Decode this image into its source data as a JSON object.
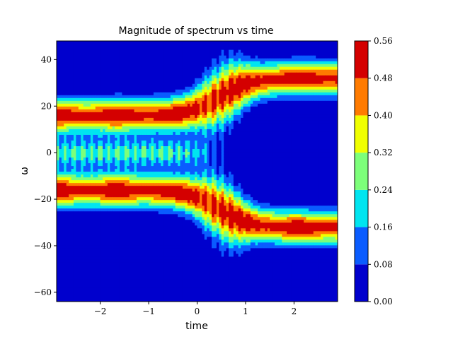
{
  "chart_data": {
    "type": "heatmap",
    "title": "Magnitude of spectrum vs time",
    "xlabel": "time",
    "ylabel": "ω",
    "xlim": [
      -2.9,
      2.9
    ],
    "ylim": [
      -64,
      48
    ],
    "x_ticks": [
      {
        "value": -2,
        "label": "−2"
      },
      {
        "value": -1,
        "label": "−1"
      },
      {
        "value": 0,
        "label": "0"
      },
      {
        "value": 1,
        "label": "1"
      },
      {
        "value": 2,
        "label": "2"
      }
    ],
    "y_ticks": [
      {
        "value": 40,
        "label": "40"
      },
      {
        "value": 20,
        "label": "20"
      },
      {
        "value": 0,
        "label": "0"
      },
      {
        "value": -20,
        "label": "−20"
      },
      {
        "value": -40,
        "label": "−40"
      },
      {
        "value": -60,
        "label": "−60"
      }
    ],
    "colorbar": {
      "levels": [
        0.0,
        0.08,
        0.16,
        0.24,
        0.32,
        0.4,
        0.48,
        0.56
      ],
      "labels": [
        "0.00",
        "0.08",
        "0.16",
        "0.24",
        "0.32",
        "0.40",
        "0.48",
        "0.56"
      ],
      "colors": [
        "#0000cd",
        "#0a5cff",
        "#00e5f0",
        "#7dff7a",
        "#f0ff00",
        "#ff7b00",
        "#d40000"
      ]
    },
    "features": [
      {
        "description": "two bands at approx ω = ±16 for time < 0, peak magnitude ≈ 0.5"
      },
      {
        "description": "two bands at approx ω = ±32 for time > 0.5, peak magnitude ≈ 0.5"
      },
      {
        "description": "weak central component near ω = 0 for time < 0"
      }
    ]
  }
}
